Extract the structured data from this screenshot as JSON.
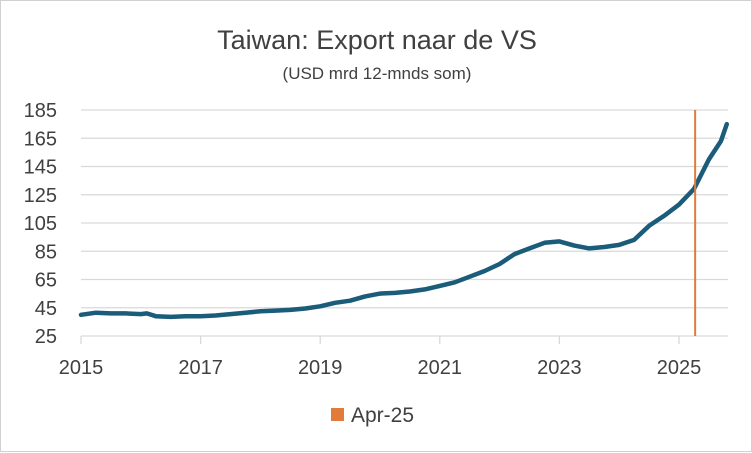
{
  "chart_data": {
    "type": "line",
    "title": "Taiwan: Export naar de VS",
    "subtitle": "(USD mrd 12-mnds som)",
    "xlabel": "",
    "ylabel": "",
    "ylim": [
      25,
      185
    ],
    "xlim": [
      2015,
      2025.85
    ],
    "yticks": [
      25,
      45,
      65,
      85,
      105,
      125,
      145,
      165,
      185
    ],
    "xticks": [
      2015,
      2017,
      2019,
      2021,
      2023,
      2025
    ],
    "grid": "horizontal",
    "series": [
      {
        "name": "Export naar de VS",
        "color": "#1b5c7a",
        "x": [
          2015.0,
          2015.25,
          2015.5,
          2015.75,
          2016.0,
          2016.1,
          2016.25,
          2016.5,
          2016.75,
          2017.0,
          2017.25,
          2017.5,
          2017.75,
          2018.0,
          2018.25,
          2018.5,
          2018.75,
          2019.0,
          2019.25,
          2019.5,
          2019.75,
          2020.0,
          2020.25,
          2020.5,
          2020.75,
          2021.0,
          2021.25,
          2021.5,
          2021.75,
          2022.0,
          2022.25,
          2022.5,
          2022.75,
          2023.0,
          2023.25,
          2023.5,
          2023.75,
          2024.0,
          2024.25,
          2024.5,
          2024.75,
          2025.0,
          2025.25,
          2025.5,
          2025.7,
          2025.8
        ],
        "values": [
          40,
          41.5,
          41,
          41,
          40.5,
          41,
          39,
          38.5,
          39,
          39,
          39.5,
          40.5,
          41.5,
          42.5,
          43,
          43.5,
          44.5,
          46,
          48.5,
          50,
          53,
          55,
          55.5,
          56.5,
          58,
          60.5,
          63,
          67,
          71,
          76,
          83,
          87,
          91,
          92,
          89,
          87,
          88,
          89.5,
          93,
          103,
          110,
          118,
          129,
          150,
          163,
          175
        ]
      }
    ],
    "annotations": [
      {
        "type": "vertical-line",
        "x": 2025.27,
        "label": "Apr-25",
        "color": "#e07b39"
      }
    ],
    "legend": {
      "position": "bottom",
      "entries": [
        "Apr-25"
      ]
    }
  }
}
